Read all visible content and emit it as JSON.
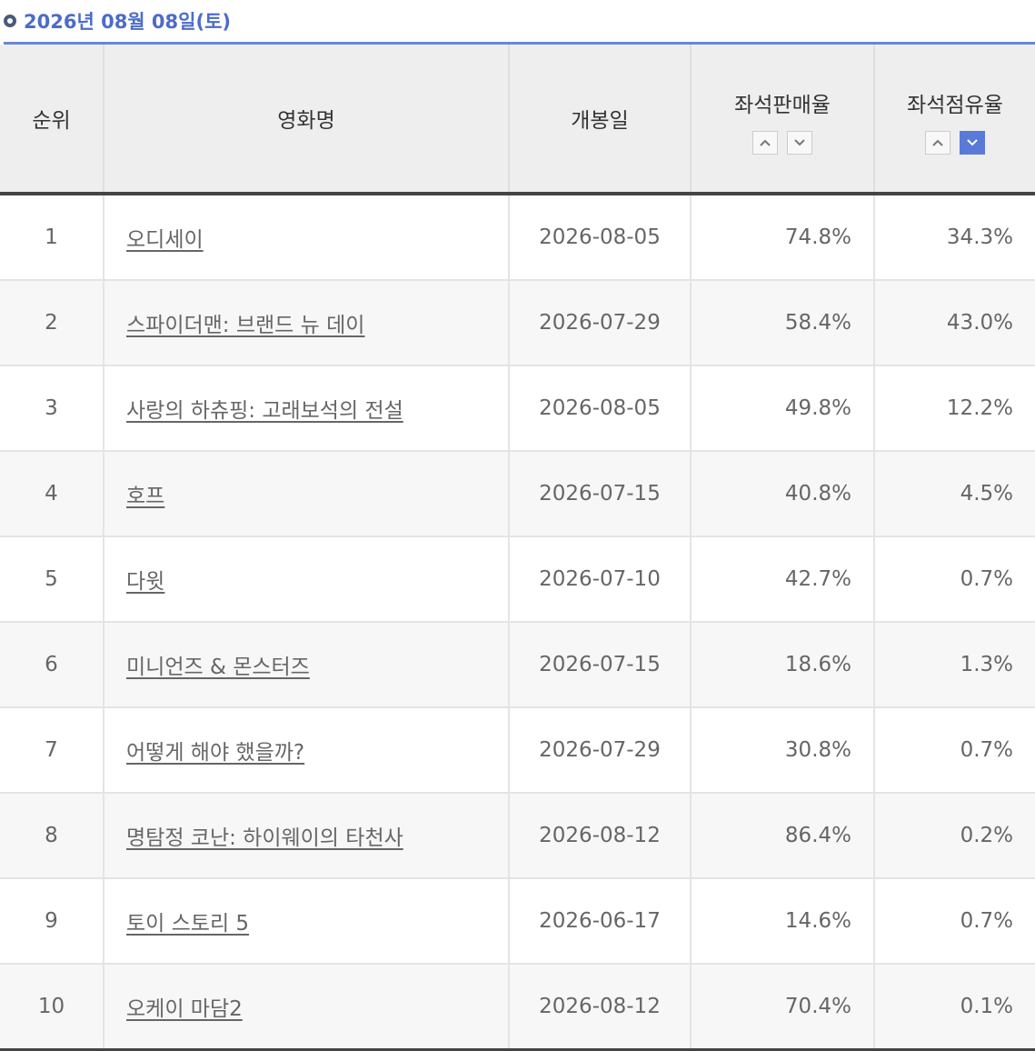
{
  "header": {
    "title": "2026년 08월 08일(토)"
  },
  "table": {
    "columns": [
      "순위",
      "영화명",
      "개봉일",
      "좌석판매율",
      "좌석점유율"
    ],
    "rows": [
      [
        1,
        "오디세이",
        "2026-08-05",
        "74.8%",
        "34.3%"
      ],
      [
        2,
        "스파이더맨: 브랜드 뉴 데이",
        "2026-07-29",
        "58.4%",
        "43.0%"
      ],
      [
        3,
        "사랑의 하츄핑: 고래보석의 전설",
        "2026-08-05",
        "49.8%",
        "12.2%"
      ],
      [
        4,
        "호프",
        "2026-07-15",
        "40.8%",
        "4.5%"
      ],
      [
        5,
        "다윗",
        "2026-07-10",
        "42.7%",
        "0.7%"
      ],
      [
        6,
        "미니언즈 & 몬스터즈",
        "2026-07-15",
        "18.6%",
        "1.3%"
      ],
      [
        7,
        "어떻게 해야 했을까?",
        "2026-07-29",
        "30.8%",
        "0.7%"
      ],
      [
        8,
        "명탐정 코난: 하이웨이의 타천사",
        "2026-08-12",
        "86.4%",
        "0.2%"
      ],
      [
        9,
        "토이 스토리 5",
        "2026-06-17",
        "14.6%",
        "0.7%"
      ],
      [
        10,
        "오케이 마담2",
        "2026-08-12",
        "70.4%",
        "0.1%"
      ]
    ]
  }
}
